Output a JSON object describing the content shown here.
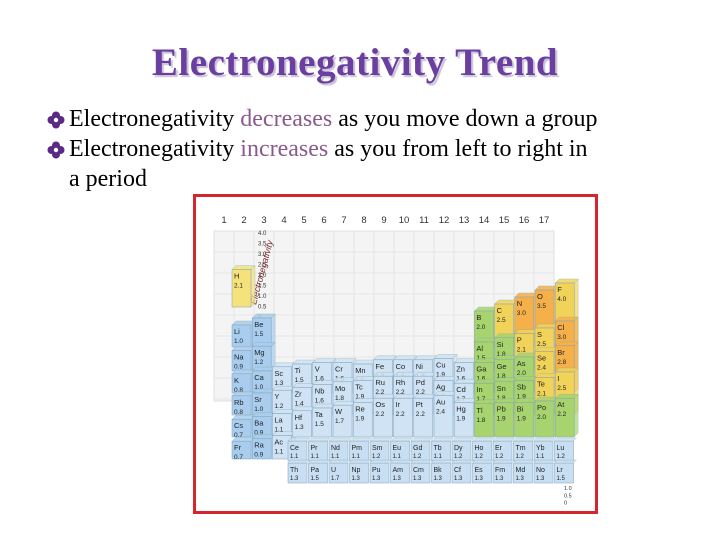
{
  "slide": {
    "title": "Electronegativity Trend",
    "bullets": [
      {
        "pre": "Electronegativity ",
        "highlight": "decreases",
        "post": " as you move down a group"
      },
      {
        "pre": "Electronegativity ",
        "highlight": "increases",
        "post": " as you from left to right in"
      }
    ],
    "continuation": "a period"
  },
  "colors": {
    "title": "#6b3fa0",
    "highlight": "#8a5a8c",
    "bullet": "#5b2a86",
    "frame": "#d6262d",
    "hydrogen": "#f5e27a",
    "s_block": "#a9cdee",
    "d_block": "#cfe3f5",
    "p_green": "#a8d46f",
    "p_yellow": "#f2d35a",
    "p_orange": "#f5b04a",
    "f_block": "#c8dff3"
  },
  "figure": {
    "group_numbers": [
      "1",
      "2",
      "3",
      "4",
      "5",
      "6",
      "7",
      "8",
      "9",
      "10",
      "11",
      "12",
      "13",
      "14",
      "15",
      "16",
      "17"
    ],
    "axis_label": "Electronegativity",
    "scale": [
      "4.0",
      "3.5",
      "3.0",
      "2.5",
      "2.0",
      "1.5",
      "1.0",
      "0.5",
      "0"
    ],
    "back_scale": [
      "4.0",
      "3.5",
      "3.0",
      "2.5",
      "2.0",
      "1.5",
      "1.0",
      "0.5",
      "0"
    ],
    "elements": [
      {
        "sym": "H",
        "en": "2.1",
        "cat": "h"
      },
      {
        "sym": "Li",
        "en": "1.0",
        "cat": "s"
      },
      {
        "sym": "Be",
        "en": "1.5",
        "cat": "s"
      },
      {
        "sym": "Na",
        "en": "0.9",
        "cat": "s"
      },
      {
        "sym": "Mg",
        "en": "1.2",
        "cat": "s"
      },
      {
        "sym": "K",
        "en": "0.8",
        "cat": "s"
      },
      {
        "sym": "Ca",
        "en": "1.0",
        "cat": "s"
      },
      {
        "sym": "Rb",
        "en": "0.8",
        "cat": "s"
      },
      {
        "sym": "Sr",
        "en": "1.0",
        "cat": "s"
      },
      {
        "sym": "Cs",
        "en": "0.7",
        "cat": "s"
      },
      {
        "sym": "Ba",
        "en": "0.9",
        "cat": "s"
      },
      {
        "sym": "Fr",
        "en": "0.7",
        "cat": "s"
      },
      {
        "sym": "Ra",
        "en": "0.9",
        "cat": "s"
      },
      {
        "sym": "Sc",
        "en": "1.3",
        "cat": "d"
      },
      {
        "sym": "Y",
        "en": "1.2",
        "cat": "d"
      },
      {
        "sym": "La",
        "en": "1.1",
        "cat": "d"
      },
      {
        "sym": "Ac",
        "en": "1.1",
        "cat": "d"
      },
      {
        "sym": "Ti",
        "en": "1.5",
        "cat": "d"
      },
      {
        "sym": "Zr",
        "en": "1.4",
        "cat": "d"
      },
      {
        "sym": "Hf",
        "en": "1.3",
        "cat": "d"
      },
      {
        "sym": "V",
        "en": "1.6",
        "cat": "d"
      },
      {
        "sym": "Nb",
        "en": "1.6",
        "cat": "d"
      },
      {
        "sym": "Ta",
        "en": "1.5",
        "cat": "d"
      },
      {
        "sym": "Cr",
        "en": "1.6",
        "cat": "d"
      },
      {
        "sym": "Mo",
        "en": "1.8",
        "cat": "d"
      },
      {
        "sym": "W",
        "en": "1.7",
        "cat": "d"
      },
      {
        "sym": "Mn",
        "en": "1.5",
        "cat": "d"
      },
      {
        "sym": "Tc",
        "en": "1.9",
        "cat": "d"
      },
      {
        "sym": "Re",
        "en": "1.9",
        "cat": "d"
      },
      {
        "sym": "Fe",
        "en": "1.8",
        "cat": "d"
      },
      {
        "sym": "Ru",
        "en": "2.2",
        "cat": "d"
      },
      {
        "sym": "Os",
        "en": "2.2",
        "cat": "d"
      },
      {
        "sym": "Co",
        "en": "1.8",
        "cat": "d"
      },
      {
        "sym": "Rh",
        "en": "2.2",
        "cat": "d"
      },
      {
        "sym": "Ir",
        "en": "2.2",
        "cat": "d"
      },
      {
        "sym": "Ni",
        "en": "1.8",
        "cat": "d"
      },
      {
        "sym": "Pd",
        "en": "2.2",
        "cat": "d"
      },
      {
        "sym": "Pt",
        "en": "2.2",
        "cat": "d"
      },
      {
        "sym": "Cu",
        "en": "1.9",
        "cat": "d"
      },
      {
        "sym": "Ag",
        "en": "1.9",
        "cat": "d"
      },
      {
        "sym": "Au",
        "en": "2.4",
        "cat": "d"
      },
      {
        "sym": "Zn",
        "en": "1.6",
        "cat": "d"
      },
      {
        "sym": "Cd",
        "en": "1.7",
        "cat": "d"
      },
      {
        "sym": "Hg",
        "en": "1.9",
        "cat": "d"
      },
      {
        "sym": "B",
        "en": "2.0",
        "cat": "pg"
      },
      {
        "sym": "Al",
        "en": "1.5",
        "cat": "pg"
      },
      {
        "sym": "Ga",
        "en": "1.6",
        "cat": "pg"
      },
      {
        "sym": "In",
        "en": "1.7",
        "cat": "pg"
      },
      {
        "sym": "Tl",
        "en": "1.8",
        "cat": "pg"
      },
      {
        "sym": "C",
        "en": "2.5",
        "cat": "py"
      },
      {
        "sym": "Si",
        "en": "1.8",
        "cat": "pg"
      },
      {
        "sym": "Ge",
        "en": "1.8",
        "cat": "pg"
      },
      {
        "sym": "Sn",
        "en": "1.8",
        "cat": "pg"
      },
      {
        "sym": "Pb",
        "en": "1.9",
        "cat": "pg"
      },
      {
        "sym": "N",
        "en": "3.0",
        "cat": "po"
      },
      {
        "sym": "P",
        "en": "2.1",
        "cat": "py"
      },
      {
        "sym": "As",
        "en": "2.0",
        "cat": "pg"
      },
      {
        "sym": "Sb",
        "en": "1.9",
        "cat": "pg"
      },
      {
        "sym": "Bi",
        "en": "1.9",
        "cat": "pg"
      },
      {
        "sym": "O",
        "en": "3.5",
        "cat": "po"
      },
      {
        "sym": "S",
        "en": "2.5",
        "cat": "py"
      },
      {
        "sym": "Se",
        "en": "2.4",
        "cat": "py"
      },
      {
        "sym": "Te",
        "en": "2.1",
        "cat": "py"
      },
      {
        "sym": "Po",
        "en": "2.0",
        "cat": "pg"
      },
      {
        "sym": "F",
        "en": "4.0",
        "cat": "py"
      },
      {
        "sym": "Cl",
        "en": "3.0",
        "cat": "po"
      },
      {
        "sym": "Br",
        "en": "2.8",
        "cat": "po"
      },
      {
        "sym": "I",
        "en": "2.5",
        "cat": "py"
      },
      {
        "sym": "At",
        "en": "2.2",
        "cat": "pg"
      }
    ],
    "f_block": [
      {
        "sym": "Ce",
        "en": "1.1"
      },
      {
        "sym": "Pr",
        "en": "1.1"
      },
      {
        "sym": "Nd",
        "en": "1.1"
      },
      {
        "sym": "Pm",
        "en": "1.1"
      },
      {
        "sym": "Sm",
        "en": "1.2"
      },
      {
        "sym": "Eu",
        "en": "1.1"
      },
      {
        "sym": "Gd",
        "en": "1.2"
      },
      {
        "sym": "Tb",
        "en": "1.1"
      },
      {
        "sym": "Dy",
        "en": "1.2"
      },
      {
        "sym": "Ho",
        "en": "1.2"
      },
      {
        "sym": "Er",
        "en": "1.2"
      },
      {
        "sym": "Tm",
        "en": "1.2"
      },
      {
        "sym": "Yb",
        "en": "1.1"
      },
      {
        "sym": "Lu",
        "en": "1.2"
      },
      {
        "sym": "Th",
        "en": "1.3"
      },
      {
        "sym": "Pa",
        "en": "1.5"
      },
      {
        "sym": "U",
        "en": "1.7"
      },
      {
        "sym": "Np",
        "en": "1.3"
      },
      {
        "sym": "Pu",
        "en": "1.3"
      },
      {
        "sym": "Am",
        "en": "1.3"
      },
      {
        "sym": "Cm",
        "en": "1.3"
      },
      {
        "sym": "Bk",
        "en": "1.3"
      },
      {
        "sym": "Cf",
        "en": "1.3"
      },
      {
        "sym": "Es",
        "en": "1.3"
      },
      {
        "sym": "Fm",
        "en": "1.3"
      },
      {
        "sym": "Md",
        "en": "1.3"
      },
      {
        "sym": "No",
        "en": "1.3"
      },
      {
        "sym": "Lr",
        "en": "1.5"
      }
    ]
  }
}
